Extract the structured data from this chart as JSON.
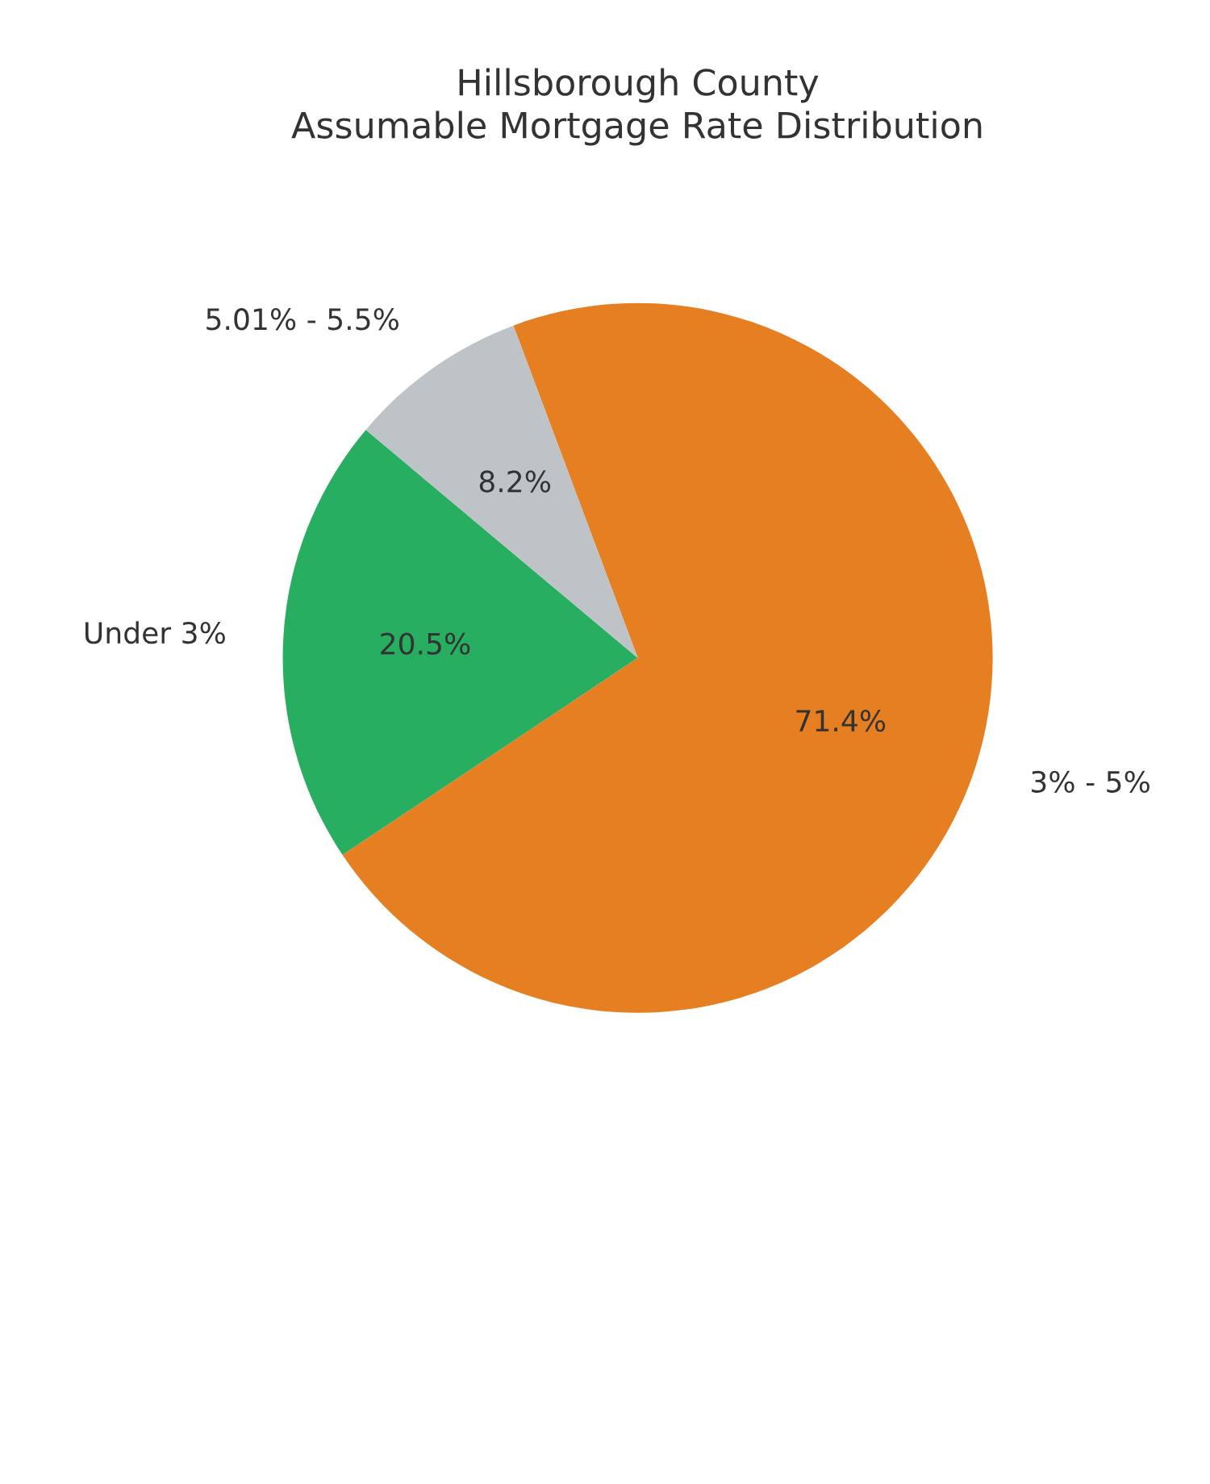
{
  "chart_data": {
    "type": "pie",
    "title": "Hillsborough County\nAssumable Mortgage Rate Distribution",
    "categories": [
      "Under 3%",
      "3% - 5%",
      "5.01% - 5.5%"
    ],
    "values": [
      20.5,
      71.4,
      8.2
    ],
    "colors": [
      "#27ae60",
      "#e67e22",
      "#bdc3c7"
    ],
    "value_labels": [
      "20.5%",
      "71.4%",
      "8.2%"
    ]
  }
}
